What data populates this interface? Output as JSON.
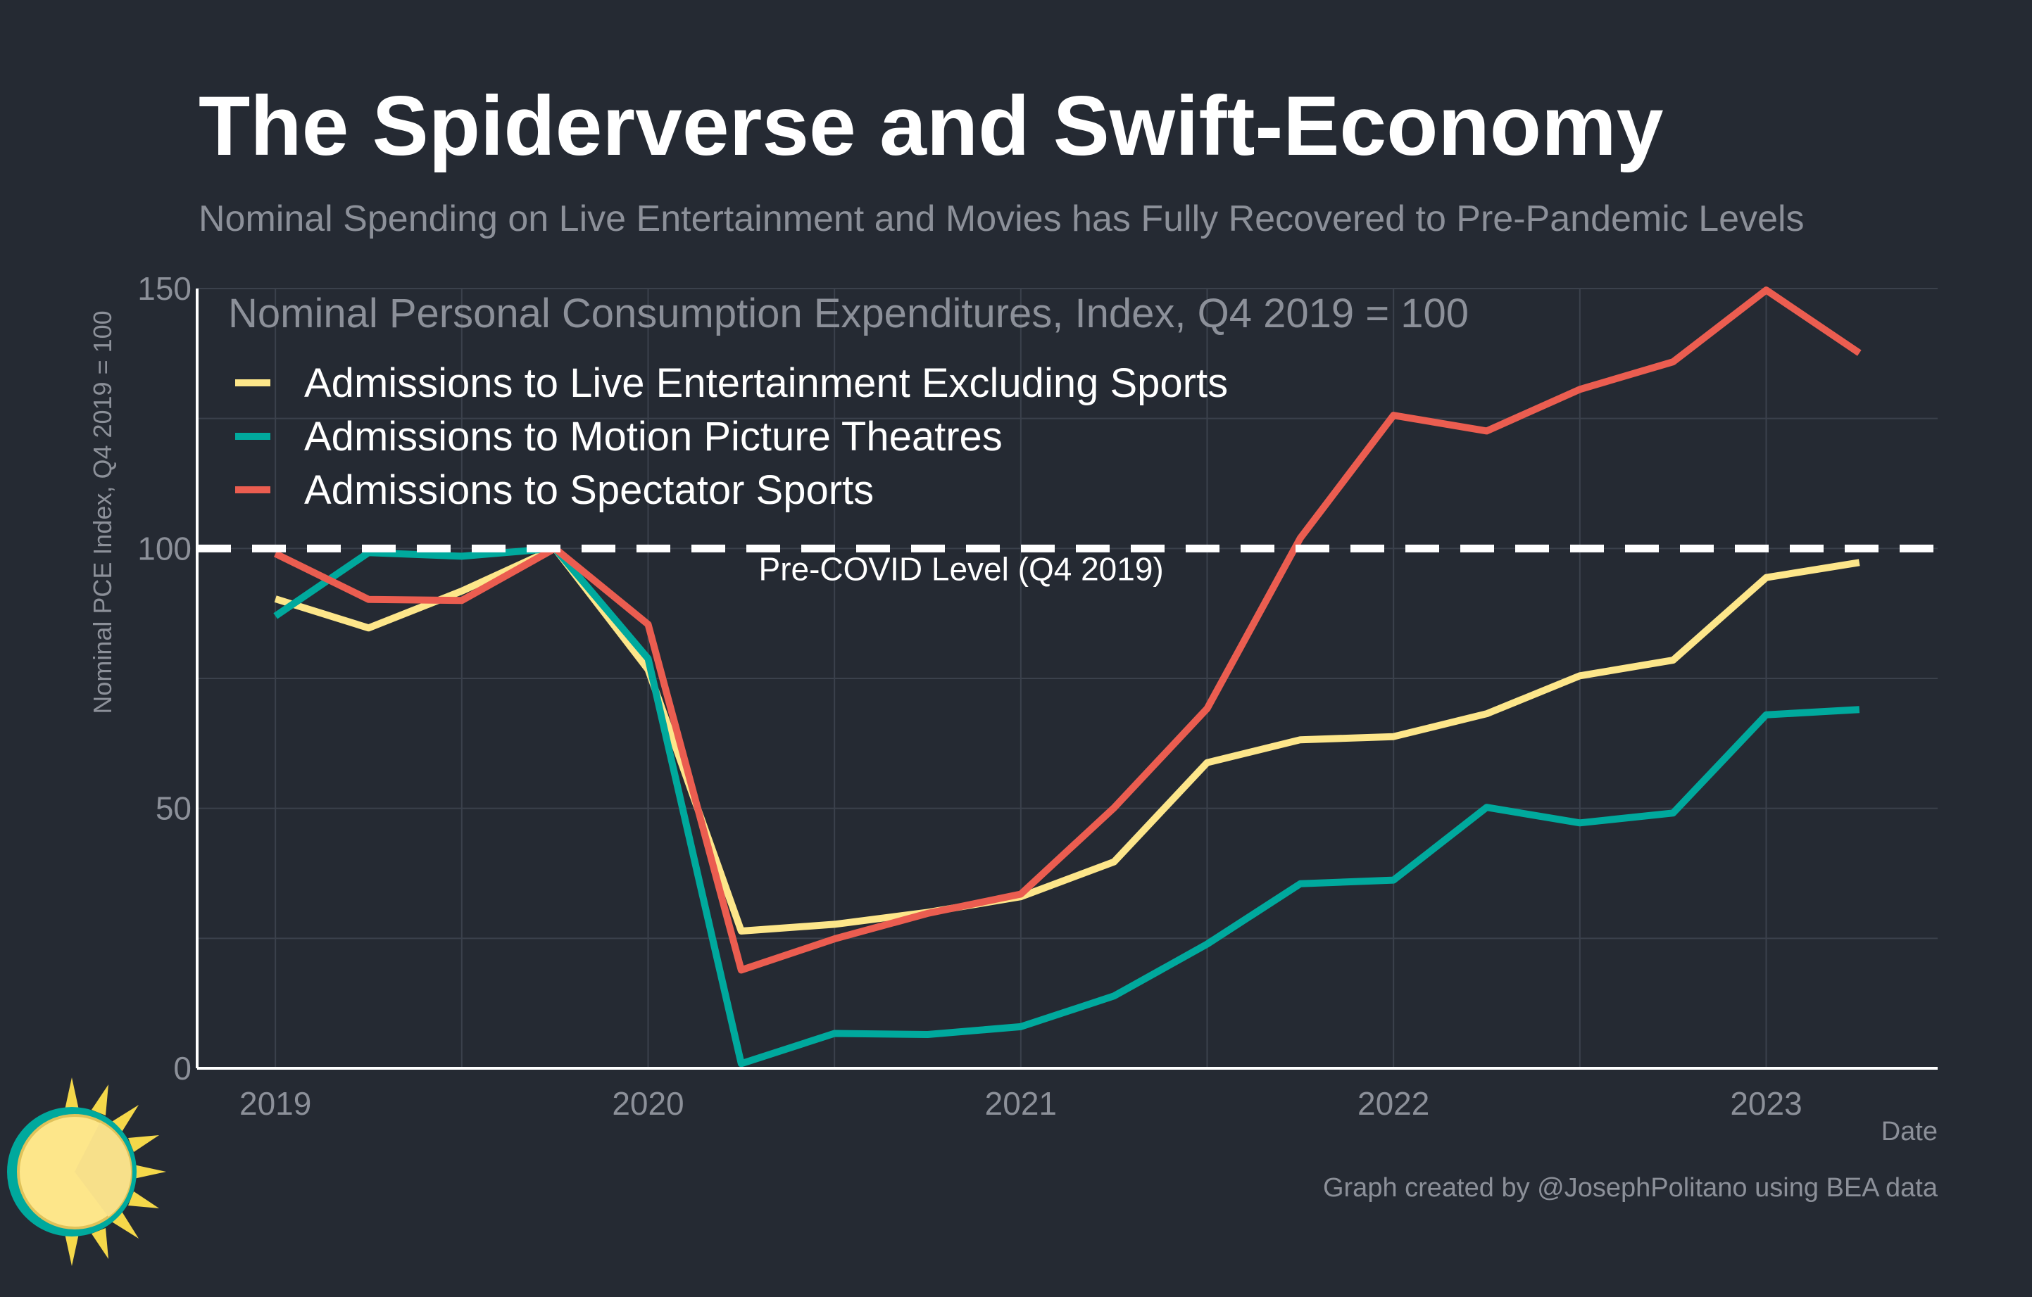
{
  "chart_data": {
    "type": "line",
    "title": "The Spiderverse and Swift-Economy",
    "subtitle": "Nominal Spending on Live Entertainment and Movies has Fully Recovered to Pre-Pandemic Levels",
    "xlabel": "Date",
    "ylabel": "Nominal PCE Index, Q4 2019 = 100",
    "legend_title": "Nominal Personal Consumption Expenditures, Index, Q4 2019 = 100",
    "legend_position": "top-left",
    "caption": "Graph created by @JosephPolitano using BEA data",
    "grid": true,
    "xlim": [
      2018.79,
      2023.46
    ],
    "ylim": [
      0,
      150
    ],
    "x_ticks": [
      2019,
      2020,
      2021,
      2022,
      2023
    ],
    "x_tick_labels": [
      "2019",
      "2020",
      "2021",
      "2022",
      "2023"
    ],
    "y_ticks": [
      0,
      50,
      100,
      150
    ],
    "y_tick_labels": [
      "0",
      "50",
      "100",
      "150"
    ],
    "x": [
      "2019-Q1",
      "2019-Q2",
      "2019-Q3",
      "2019-Q4",
      "2020-Q1",
      "2020-Q2",
      "2020-Q3",
      "2020-Q4",
      "2021-Q1",
      "2021-Q2",
      "2021-Q3",
      "2021-Q4",
      "2022-Q1",
      "2022-Q2",
      "2022-Q3",
      "2022-Q4",
      "2023-Q1",
      "2023-Q2"
    ],
    "reference_line": {
      "value": 100,
      "label": "Pre-COVID Level (Q4 2019)",
      "color": "#ffffff",
      "style": "dashed"
    },
    "series": [
      {
        "name": "Admissions to Live Entertainment Excluding Sports",
        "color": "#fde68a",
        "values": [
          90.3,
          84.7,
          91.8,
          100,
          76.7,
          26.4,
          27.7,
          30.0,
          33.0,
          39.7,
          58.8,
          63.2,
          63.8,
          68.2,
          75.5,
          78.5,
          94.4,
          97.3
        ]
      },
      {
        "name": "Admissions to Motion Picture Theatres",
        "color": "#00a99d",
        "values": [
          87.0,
          99.2,
          98.5,
          100,
          78.8,
          0.9,
          6.7,
          6.5,
          8.0,
          13.9,
          23.9,
          35.5,
          36.2,
          50.2,
          47.2,
          49.1,
          68.0,
          69.0
        ]
      },
      {
        "name": "Admissions to Spectator Sports",
        "color": "#eb5d50",
        "values": [
          99.0,
          90.2,
          90.0,
          100,
          85.4,
          18.9,
          24.9,
          29.8,
          33.5,
          50.1,
          69.2,
          102.0,
          125.6,
          122.6,
          130.6,
          135.9,
          149.7,
          137.6
        ]
      }
    ]
  },
  "colors": {
    "background": "#252a33",
    "grid": "#3b414c",
    "axis": "#ffffff",
    "title": "#ffffff",
    "muted_text": "#8c9099",
    "legend_text": "#ffffff"
  },
  "logo": {
    "icon": "sun-logo-icon"
  }
}
